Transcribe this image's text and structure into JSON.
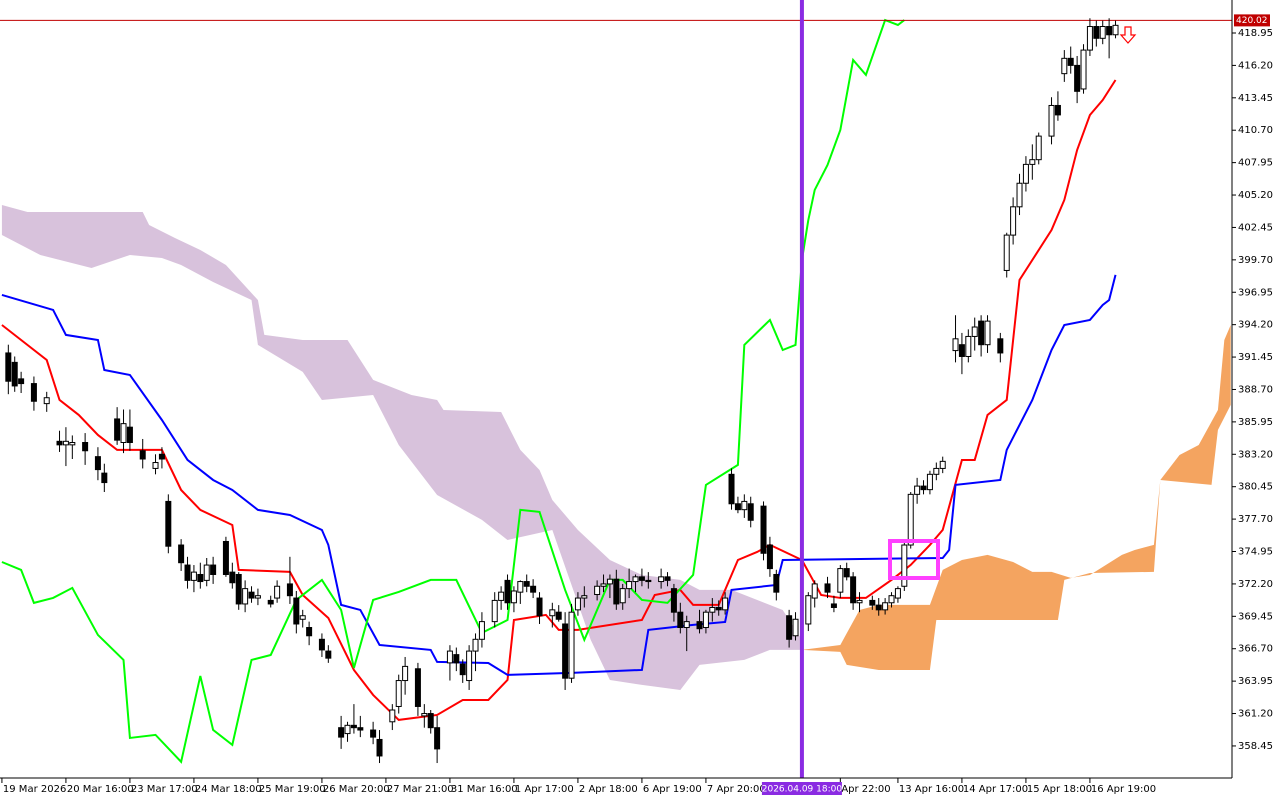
{
  "chart_data": {
    "type": "candlestick",
    "xlim": [
      -0.3,
      192.2
    ],
    "ylim": [
      355.73,
      421.75
    ],
    "up_color": "#ffffff",
    "down_color": "#000000",
    "wick_color": "#000000",
    "x": [
      1,
      2,
      3,
      5,
      7,
      9,
      10,
      11,
      13,
      15,
      16,
      18,
      19,
      20,
      22,
      24,
      25,
      26,
      28,
      29,
      30,
      31,
      32,
      33,
      35,
      36,
      37,
      38,
      39,
      40,
      42,
      43,
      45,
      46,
      47,
      48,
      50,
      51,
      53,
      54,
      55,
      56,
      58,
      59,
      61,
      62,
      63,
      65,
      66,
      67,
      68,
      70,
      71,
      72,
      73,
      74,
      75,
      77,
      78,
      79,
      80,
      81,
      82,
      83,
      84,
      86,
      87,
      88,
      89,
      90,
      91,
      93,
      94,
      95,
      96,
      97,
      98,
      99,
      100,
      101,
      103,
      104,
      105,
      106,
      107,
      109,
      110,
      111,
      112,
      113,
      114,
      115,
      116,
      117,
      119,
      120,
      121,
      123,
      124,
      126,
      127,
      129,
      130,
      131,
      132,
      133,
      134,
      136,
      137,
      138,
      139,
      140,
      141,
      142,
      143,
      144,
      145,
      146,
      147,
      149,
      150,
      151,
      152,
      153,
      154,
      156,
      157,
      158,
      159,
      160,
      161,
      162,
      164,
      165,
      166,
      167,
      168,
      169,
      170,
      171,
      172,
      173,
      174
    ],
    "open": [
      391.8,
      391.0,
      389.6,
      389.2,
      387.5,
      384.3,
      384.0,
      384.0,
      384.2,
      383.0,
      381.6,
      386.2,
      384.2,
      385.5,
      383.5,
      382.0,
      383.2,
      379.2,
      375.5,
      373.8,
      372.5,
      373.0,
      372.5,
      373.8,
      375.8,
      373.2,
      373.0,
      370.5,
      371.5,
      371.0,
      370.8,
      371.0,
      372.2,
      371.0,
      369.2,
      368.5,
      367.5,
      366.5,
      360.0,
      359.5,
      360.2,
      360.0,
      359.8,
      359.0,
      360.5,
      361.8,
      364.0,
      365.0,
      361.0,
      361.2,
      360.0,
      365.5,
      366.2,
      365.4,
      364.0,
      366.5,
      367.5,
      369.0,
      370.8,
      372.5,
      370.6,
      371.5,
      372.4,
      372.0,
      371.0,
      369.5,
      369.8,
      368.8,
      364.2,
      370.0,
      371.0,
      371.3,
      372.0,
      372.2,
      372.6,
      370.6,
      371.8,
      372.4,
      372.8,
      372.5,
      372.4,
      372.8,
      371.8,
      369.8,
      368.5,
      369.0,
      368.5,
      369.8,
      370.2,
      370.0,
      381.5,
      379.0,
      378.5,
      379.0,
      378.8,
      375.5,
      373.0,
      369.5,
      367.8,
      368.8,
      371.0,
      372.2,
      370.5,
      371.5,
      373.5,
      372.8,
      370.6,
      370.8,
      370.4,
      370.0,
      370.6,
      371.0,
      372.0,
      375.5,
      379.8,
      380.5,
      380.2,
      381.5,
      382.0,
      392.0,
      392.5,
      391.5,
      393.2,
      394.5,
      392.5,
      393.0,
      398.8,
      401.8,
      404.2,
      406.2,
      407.8,
      408.2,
      410.2,
      412.8,
      415.5,
      416.8,
      416.2,
      414.2,
      417.5,
      419.5,
      418.5,
      419.5,
      418.8
    ],
    "high": [
      392.5,
      391.5,
      390.2,
      389.8,
      388.5,
      385.2,
      385.5,
      384.8,
      385.0,
      383.8,
      382.4,
      387.2,
      387.0,
      387.0,
      384.5,
      383.2,
      383.8,
      379.8,
      376.0,
      374.5,
      373.8,
      374.0,
      374.4,
      374.5,
      376.2,
      374.0,
      373.2,
      372.5,
      372.0,
      371.8,
      371.2,
      372.5,
      374.5,
      371.6,
      370.0,
      369.0,
      368.0,
      367.0,
      361.0,
      360.5,
      362.0,
      361.0,
      360.5,
      359.8,
      362.0,
      364.5,
      366.0,
      365.5,
      362.0,
      361.5,
      361.0,
      367.0,
      366.8,
      365.8,
      367.0,
      368.0,
      369.8,
      371.5,
      372.0,
      373.0,
      372.0,
      372.5,
      373.0,
      372.6,
      371.5,
      370.6,
      370.4,
      369.8,
      370.5,
      371.5,
      372.0,
      372.5,
      373.0,
      373.0,
      373.4,
      372.2,
      373.5,
      373.0,
      373.5,
      373.2,
      373.5,
      373.2,
      372.2,
      370.6,
      369.5,
      370.0,
      370.0,
      371.0,
      370.8,
      371.5,
      382.0,
      379.6,
      379.8,
      379.6,
      379.2,
      376.2,
      373.4,
      370.0,
      369.8,
      371.5,
      372.5,
      372.8,
      371.2,
      373.8,
      374.0,
      373.2,
      371.5,
      371.2,
      371.0,
      371.0,
      371.5,
      372.0,
      376.0,
      380.0,
      381.2,
      381.0,
      381.8,
      382.5,
      383.0,
      395.0,
      393.5,
      393.8,
      394.8,
      395.0,
      395.0,
      393.5,
      402.0,
      405.0,
      407.0,
      408.5,
      409.5,
      410.5,
      413.5,
      414.0,
      417.5,
      417.8,
      417.0,
      418.0,
      420.2,
      420.0,
      420.0,
      420.2,
      420.0
    ],
    "low": [
      388.3,
      388.5,
      388.4,
      386.9,
      386.8,
      383.4,
      382.2,
      382.8,
      382.3,
      381.0,
      380.0,
      384.0,
      383.3,
      383.5,
      382.0,
      381.5,
      382.0,
      374.8,
      373.3,
      371.8,
      371.5,
      371.8,
      372.0,
      372.2,
      372.8,
      371.8,
      370.0,
      369.8,
      370.6,
      370.4,
      370.2,
      370.6,
      370.5,
      368.0,
      368.5,
      367.0,
      366.0,
      365.5,
      358.2,
      358.8,
      359.5,
      359.2,
      358.6,
      357.0,
      359.8,
      361.2,
      362.8,
      361.0,
      360.0,
      359.5,
      357.0,
      364.0,
      364.8,
      363.8,
      363.2,
      364.8,
      366.8,
      368.5,
      370.0,
      370.0,
      369.8,
      370.5,
      371.5,
      371.0,
      368.8,
      368.5,
      369.0,
      363.2,
      363.8,
      369.5,
      370.2,
      370.8,
      371.5,
      371.0,
      370.0,
      370.0,
      371.0,
      371.5,
      372.0,
      371.8,
      371.8,
      372.0,
      369.0,
      368.0,
      366.5,
      368.0,
      368.0,
      369.0,
      369.5,
      369.6,
      378.5,
      378.2,
      377.8,
      377.0,
      374.2,
      372.8,
      370.8,
      366.8,
      367.4,
      368.2,
      370.2,
      371.0,
      369.8,
      371.0,
      372.5,
      370.0,
      369.8,
      370.0,
      369.5,
      369.6,
      370.2,
      370.6,
      371.6,
      375.2,
      379.0,
      379.8,
      379.8,
      381.0,
      381.6,
      391.0,
      390.0,
      391.0,
      392.0,
      391.5,
      391.8,
      391.0,
      398.2,
      401.0,
      403.5,
      405.5,
      406.5,
      407.8,
      409.5,
      411.5,
      414.8,
      415.5,
      413.0,
      413.8,
      417.0,
      417.8,
      418.0,
      416.8,
      418.5
    ],
    "close": [
      389.4,
      389.0,
      389.2,
      387.7,
      388.0,
      384.0,
      384.3,
      384.2,
      383.5,
      381.9,
      380.8,
      384.4,
      385.8,
      384.2,
      382.8,
      382.5,
      382.8,
      375.4,
      374.0,
      372.5,
      373.2,
      372.4,
      373.8,
      373.0,
      373.0,
      372.3,
      370.5,
      371.8,
      371.0,
      371.2,
      370.5,
      372.0,
      371.2,
      368.8,
      369.5,
      367.8,
      366.6,
      365.9,
      359.2,
      360.2,
      360.0,
      359.8,
      359.2,
      357.6,
      361.5,
      364.0,
      365.2,
      361.8,
      361.2,
      360.0,
      358.2,
      366.5,
      365.5,
      364.5,
      366.5,
      367.5,
      369.0,
      370.8,
      371.5,
      370.6,
      371.6,
      372.4,
      372.0,
      371.5,
      369.5,
      370.0,
      369.2,
      364.2,
      369.8,
      371.0,
      371.2,
      372.0,
      372.2,
      372.6,
      370.5,
      371.8,
      372.4,
      372.8,
      372.5,
      372.4,
      372.8,
      372.5,
      369.8,
      368.5,
      369.0,
      368.4,
      369.8,
      370.2,
      370.0,
      371.0,
      379.0,
      378.5,
      379.2,
      377.6,
      374.8,
      373.5,
      371.5,
      367.5,
      369.2,
      371.2,
      372.2,
      371.5,
      370.2,
      373.5,
      372.8,
      370.6,
      370.8,
      370.4,
      370.0,
      370.6,
      371.2,
      371.8,
      375.5,
      379.8,
      380.5,
      380.2,
      381.5,
      382.0,
      382.6,
      393.0,
      391.5,
      393.2,
      394.0,
      392.5,
      394.5,
      391.8,
      401.8,
      404.2,
      406.2,
      407.8,
      408.2,
      410.2,
      412.8,
      412.0,
      416.8,
      416.2,
      414.0,
      417.5,
      419.5,
      418.5,
      419.5,
      418.8,
      419.6
    ],
    "lines": [
      {
        "color": "#ff0000",
        "x": [
          0,
          3,
          7,
          9,
          12,
          15,
          18,
          25,
          28,
          31,
          36,
          37,
          45,
          47,
          51,
          55,
          58,
          62,
          68,
          72,
          76,
          79,
          80,
          85,
          87,
          90,
          100,
          102,
          106,
          108,
          112,
          115,
          118,
          120,
          125,
          128,
          131,
          135,
          139,
          142,
          145,
          147,
          150,
          152,
          154,
          157,
          159,
          164,
          166,
          168,
          170,
          172,
          174
        ],
        "values": [
          394.17,
          392.9,
          391.2,
          387.81,
          386.54,
          384.84,
          383.57,
          383.57,
          380.17,
          378.48,
          377.2,
          373.39,
          373.22,
          371.26,
          369.31,
          364.9,
          362.78,
          360.66,
          361.08,
          362.35,
          362.35,
          364.05,
          369.14,
          369.57,
          368.3,
          368.3,
          369.14,
          371.26,
          371.69,
          370.42,
          370.42,
          374.23,
          374.91,
          375.51,
          374.23,
          371.26,
          371.01,
          371.01,
          372.54,
          373.81,
          375.51,
          376.78,
          382.72,
          382.72,
          386.54,
          387.81,
          397.99,
          402.23,
          404.78,
          409.02,
          411.99,
          413.26,
          414.96
        ]
      },
      {
        "color": "#0000ff",
        "x": [
          0,
          8,
          10,
          15,
          16,
          20,
          25,
          29,
          33,
          36,
          40,
          45,
          50,
          51,
          53,
          56,
          59,
          67,
          68,
          76,
          79,
          89,
          100,
          101,
          108,
          113,
          114,
          121,
          122,
          147,
          148,
          149,
          156,
          157,
          161,
          164,
          166,
          170,
          172,
          173,
          174
        ],
        "values": [
          396.72,
          395.45,
          393.33,
          392.9,
          390.35,
          389.93,
          386.11,
          382.72,
          381.02,
          380.17,
          378.48,
          378.05,
          376.78,
          375.51,
          370.42,
          369.99,
          367.02,
          366.6,
          365.58,
          365.49,
          364.48,
          364.65,
          364.9,
          368.3,
          368.72,
          368.97,
          371.69,
          372.11,
          374.23,
          374.4,
          375.08,
          380.6,
          381.02,
          383.57,
          387.81,
          392.05,
          394.17,
          394.6,
          395.87,
          396.29,
          398.42
        ]
      },
      {
        "color": "#00ff00",
        "x": [
          0,
          3,
          5,
          8,
          11,
          15,
          19,
          20,
          24,
          28,
          31,
          33,
          36,
          39,
          42,
          46,
          50,
          53,
          55,
          58,
          62,
          67,
          71,
          75,
          79,
          81,
          84,
          88,
          91,
          95,
          97,
          100,
          104,
          108,
          110,
          115,
          116,
          120,
          122,
          124,
          125,
          126,
          127,
          129,
          131,
          133,
          135,
          138,
          140,
          141
        ],
        "values": [
          374.06,
          373.39,
          370.59,
          371.01,
          371.86,
          367.87,
          365.75,
          359.13,
          359.39,
          357.1,
          364.39,
          359.81,
          358.54,
          365.75,
          366.17,
          370.84,
          372.54,
          369.99,
          365.07,
          370.84,
          371.52,
          372.54,
          372.54,
          368.04,
          369.14,
          378.48,
          378.31,
          371.69,
          367.45,
          372.54,
          372.54,
          370.84,
          370.59,
          372.96,
          380.6,
          382.3,
          392.48,
          394.6,
          392.05,
          392.48,
          399.69,
          403.08,
          405.63,
          407.75,
          410.72,
          416.66,
          415.39,
          420.05,
          419.63,
          420.05
        ]
      }
    ],
    "clouds": [
      {
        "color": "#d8c2dc",
        "x_upper": [
          0,
          4,
          22,
          23,
          27,
          31,
          35,
          40,
          41,
          47,
          54,
          58,
          64,
          68,
          69,
          78,
          81,
          84,
          86,
          90,
          95,
          100,
          106,
          109,
          114,
          122,
          125
        ],
        "upper": [
          404.35,
          403.76,
          403.76,
          402.66,
          401.56,
          400.54,
          399.26,
          396.29,
          393.33,
          392.9,
          392.9,
          389.51,
          388.23,
          387.81,
          386.96,
          386.79,
          383.57,
          381.87,
          379.32,
          376.78,
          374.23,
          372.96,
          372.54,
          371.69,
          371.69,
          369.99,
          367.45
        ],
        "x_lower": [
          0,
          6,
          14,
          20,
          25,
          28,
          33,
          39,
          40,
          47,
          50,
          58,
          62,
          68,
          75,
          79,
          86,
          92,
          95,
          100,
          106,
          109,
          116,
          120,
          125
        ],
        "lower": [
          401.81,
          400.11,
          399.01,
          400.11,
          399.86,
          399.26,
          397.82,
          396.29,
          392.48,
          390.19,
          387.81,
          388.23,
          383.99,
          379.75,
          377.63,
          375.93,
          376.78,
          367.45,
          364.05,
          363.63,
          363.2,
          365.33,
          365.75,
          366.6,
          366.6
        ]
      },
      {
        "color": "#f4a460",
        "x_upper": [
          125,
          131,
          134,
          137,
          145,
          147,
          150,
          154,
          158,
          161,
          164,
          167,
          170,
          175,
          177,
          180,
          181,
          184,
          187,
          190,
          191,
          192
        ],
        "upper": [
          366.6,
          367.02,
          369.99,
          370.42,
          370.42,
          373.39,
          374.23,
          374.66,
          374.06,
          373.22,
          373.22,
          372.71,
          372.96,
          374.66,
          375.08,
          375.51,
          381.02,
          383.14,
          383.99,
          386.96,
          392.9,
          394.17
        ],
        "x_lower": [
          125,
          131,
          132,
          137,
          145,
          146,
          165,
          166,
          170,
          180,
          181,
          189,
          190,
          192
        ],
        "lower": [
          366.6,
          366.43,
          365.33,
          364.9,
          364.9,
          369.14,
          369.14,
          372.54,
          373.13,
          373.22,
          381.02,
          380.6,
          385.26,
          387.39
        ]
      }
    ],
    "price_line": {
      "value": 420.02,
      "color": "#c00000"
    },
    "vline": {
      "x": 125,
      "label": "2026.04.09 18:00",
      "color": "#8a2be2"
    },
    "xticks": [
      {
        "value": 0,
        "label": "19 Mar 2026"
      },
      {
        "value": 10,
        "label": "20 Mar 16:00"
      },
      {
        "value": 20,
        "label": "23 Mar 17:00"
      },
      {
        "value": 30,
        "label": "24 Mar 18:00"
      },
      {
        "value": 40,
        "label": "25 Mar 19:00"
      },
      {
        "value": 50,
        "label": "26 Mar 20:00"
      },
      {
        "value": 60,
        "label": "27 Mar 21:00"
      },
      {
        "value": 70,
        "label": "31 Mar 16:00"
      },
      {
        "value": 80,
        "label": "1 Apr 17:00"
      },
      {
        "value": 90,
        "label": "2 Apr 18:00"
      },
      {
        "value": 100,
        "label": "6 Apr 19:00"
      },
      {
        "value": 110,
        "label": "7 Apr 20:00"
      },
      {
        "value": 131,
        "label": "Apr 22:00"
      },
      {
        "value": 140,
        "label": "13 Apr 16:00"
      },
      {
        "value": 150,
        "label": "14 Apr 17:00"
      },
      {
        "value": 160,
        "label": "15 Apr 18:00"
      },
      {
        "value": 170,
        "label": "16 Apr 19:00"
      }
    ],
    "yticks": [
      358.45,
      {
        "value": 361.2,
        "label": "361.20"
      },
      363.95,
      {
        "value": 366.7,
        "label": "366.70"
      },
      369.45,
      {
        "value": 372.2,
        "label": "372.20"
      },
      374.95,
      {
        "value": 377.7,
        "label": "377.70"
      },
      380.45,
      {
        "value": 383.2,
        "label": "383.20"
      },
      385.95,
      {
        "value": 388.7,
        "label": "388.70"
      },
      391.45,
      {
        "value": 394.2,
        "label": "394.20"
      },
      396.95,
      {
        "value": 399.7,
        "label": "399.70"
      },
      402.45,
      {
        "value": 405.2,
        "label": "405.20"
      },
      407.95,
      {
        "value": 410.7,
        "label": "410.70"
      },
      413.45,
      {
        "value": 416.2,
        "label": "416.20"
      },
      418.95
    ]
  }
}
